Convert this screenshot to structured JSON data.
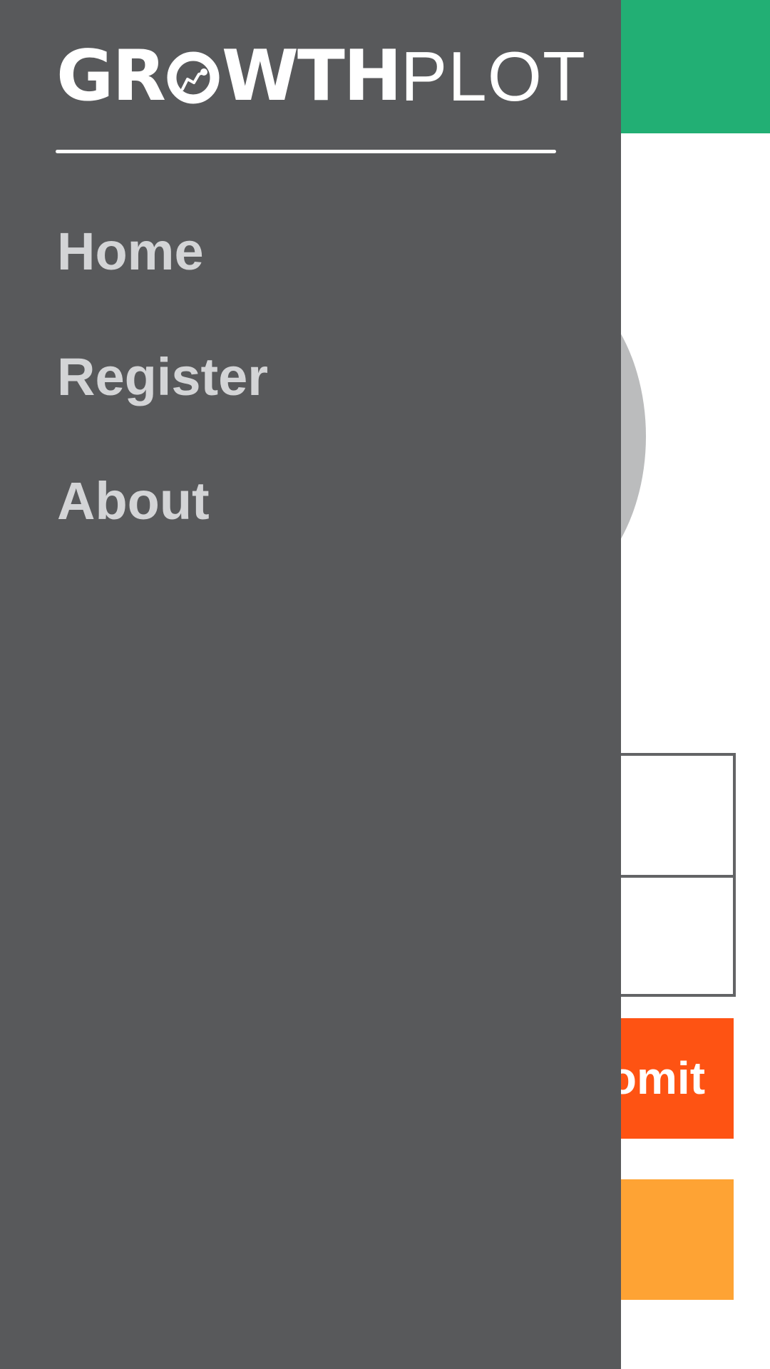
{
  "colors": {
    "topbar": "#22af74",
    "drawer": "#58595b",
    "submit": "#fe5313",
    "secondary": "#fea334",
    "nav_text": "#d3d4d6",
    "form_border": "#636466",
    "avatar": "#bbbcbd"
  },
  "drawer": {
    "brand": {
      "bold_part_1": "GR",
      "bold_part_2": "WTH",
      "light_part": "PLOT",
      "logo_o_icon": "growth-chart-o-icon"
    },
    "nav": {
      "items": [
        {
          "label": "Home"
        },
        {
          "label": "Register"
        },
        {
          "label": "About"
        }
      ]
    }
  },
  "page": {
    "form": {
      "submit_label": "omit"
    }
  }
}
